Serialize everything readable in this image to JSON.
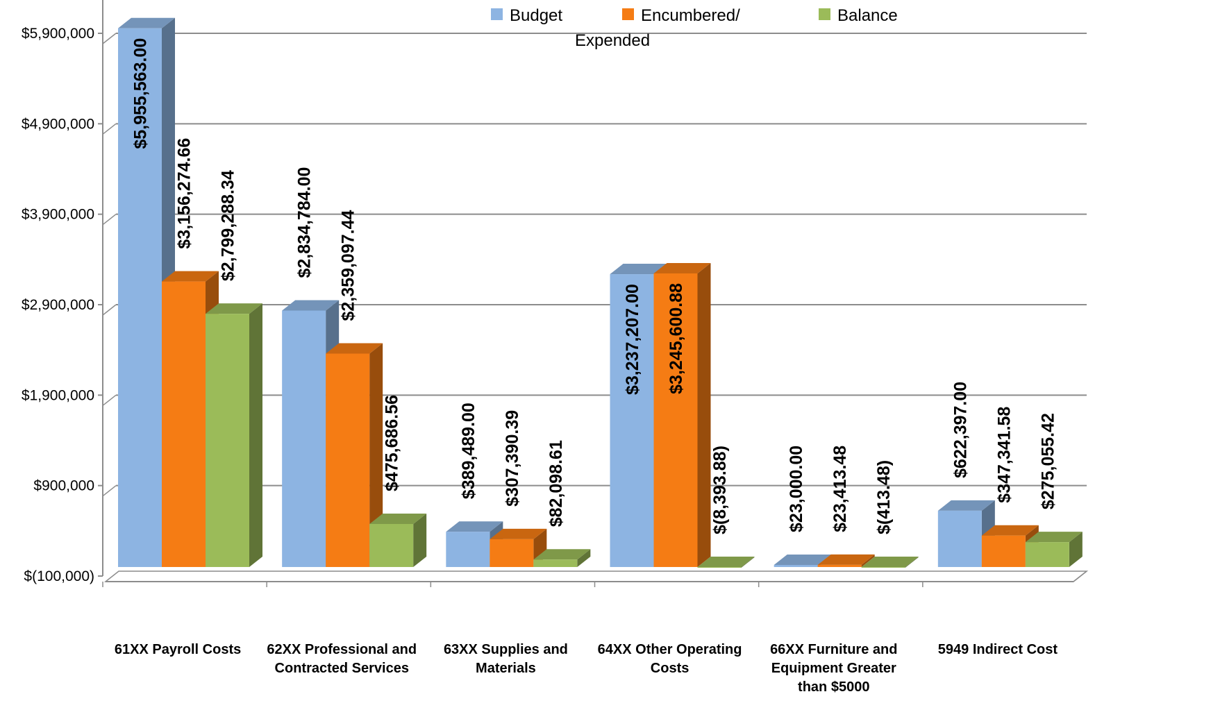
{
  "chart_data": {
    "type": "bar",
    "style": "3d-clustered-column",
    "title": "",
    "xlabel": "",
    "ylabel": "",
    "categories": [
      [
        "61XX Payroll Costs"
      ],
      [
        "62XX Professional and",
        "Contracted Services"
      ],
      [
        "63XX Supplies and",
        "Materials"
      ],
      [
        "64XX Other Operating",
        "Costs"
      ],
      [
        "66XX Furniture and",
        "Equipment Greater",
        "than $5000"
      ],
      [
        "5949 Indirect Cost"
      ]
    ],
    "series": [
      {
        "name": "Budget",
        "legend_label": [
          "Budget"
        ],
        "color": "#8DB4E2",
        "values": [
          5955563.0,
          2834784.0,
          389489.0,
          3237207.0,
          23000.0,
          622397.0
        ],
        "labels": [
          "$5,955,563.00",
          "$2,834,784.00",
          "$389,489.00",
          "$3,237,207.00",
          "$23,000.00",
          "$622,397.00"
        ]
      },
      {
        "name": "Encumbered/ Expended",
        "legend_label": [
          "Encumbered/",
          "Expended"
        ],
        "color": "#F57C14",
        "values": [
          3156274.66,
          2359097.44,
          307390.39,
          3245600.88,
          23413.48,
          347341.58
        ],
        "labels": [
          "$3,156,274.66",
          "$2,359,097.44",
          "$307,390.39",
          "$3,245,600.88",
          "$23,413.48",
          "$347,341.58"
        ]
      },
      {
        "name": "Balance",
        "legend_label": [
          "Balance"
        ],
        "color": "#9BBB59",
        "values": [
          2799288.34,
          475686.56,
          82098.61,
          -8393.88,
          -413.48,
          275055.42
        ],
        "labels": [
          "$2,799,288.34",
          "$475,686.56",
          "$82,098.61",
          "$(8,393.88)",
          "$(413.48)",
          "$275,055.42"
        ]
      }
    ],
    "ylim": [
      -100000,
      5900000
    ],
    "yticks": [
      -100000,
      900000,
      1900000,
      2900000,
      3900000,
      4900000,
      5900000
    ],
    "ytick_labels": [
      "$(100,000)",
      "$900,000",
      "$1,900,000",
      "$2,900,000",
      "$3,900,000",
      "$4,900,000",
      "$5,900,000"
    ],
    "grid": true,
    "legend_position": "top"
  }
}
